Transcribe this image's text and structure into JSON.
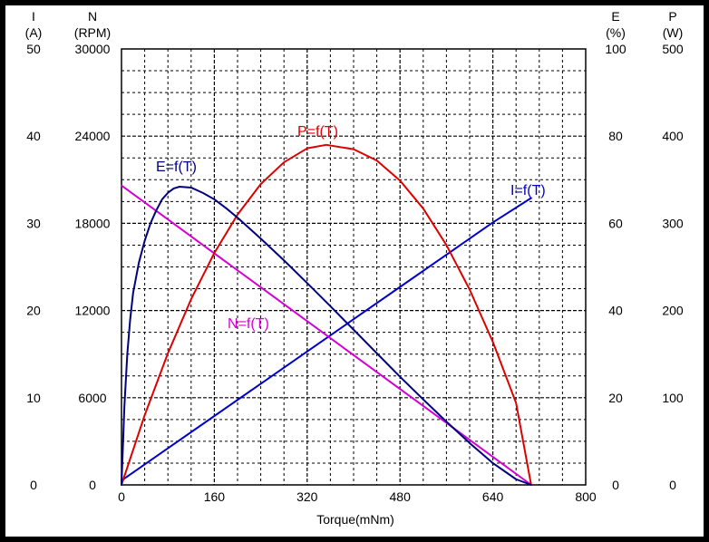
{
  "chart_data": {
    "type": "line",
    "grid": true,
    "xlabel": "Torque(mNm)",
    "xlim": [
      0,
      800
    ],
    "x_ticks": [
      "0",
      "160",
      "320",
      "480",
      "640",
      "800"
    ],
    "axes": {
      "left_outer": {
        "name": "I",
        "unit": "(A)",
        "ticks": [
          "0",
          "10",
          "20",
          "30",
          "40",
          "50"
        ],
        "range": [
          0,
          50
        ]
      },
      "left_inner": {
        "name": "N",
        "unit": "(RPM)",
        "ticks": [
          "0",
          "6000",
          "12000",
          "18000",
          "24000",
          "30000"
        ],
        "range": [
          0,
          30000
        ]
      },
      "right_inner": {
        "name": "E",
        "unit": "(%)",
        "ticks": [
          "0",
          "20",
          "40",
          "60",
          "80",
          "100"
        ],
        "range": [
          0,
          100
        ]
      },
      "right_outer": {
        "name": "P",
        "unit": "(W)",
        "ticks": [
          "0",
          "100",
          "200",
          "300",
          "400",
          "500"
        ],
        "range": [
          0,
          500
        ]
      }
    },
    "series": [
      {
        "name": "I=f(T)",
        "axis": "left_outer",
        "color": "#0000cc",
        "x": [
          0,
          80,
          160,
          240,
          320,
          400,
          480,
          560,
          640,
          706
        ],
        "y": [
          0.5,
          4.2,
          7.9,
          11.6,
          15.3,
          19.0,
          22.7,
          26.4,
          30.1,
          32.9
        ]
      },
      {
        "name": "N=f(T)",
        "axis": "left_inner",
        "color": "#d400d4",
        "x": [
          0,
          80,
          160,
          240,
          320,
          400,
          480,
          560,
          640,
          706
        ],
        "y": [
          20600,
          18270,
          15930,
          13600,
          11270,
          8930,
          6600,
          4270,
          1930,
          0
        ]
      },
      {
        "name": "P=f(T)",
        "axis": "right_outer",
        "color": "#dd0000",
        "x": [
          0,
          40,
          80,
          120,
          160,
          200,
          240,
          280,
          320,
          353,
          400,
          440,
          480,
          520,
          560,
          600,
          640,
          680,
          706
        ],
        "y": [
          0,
          80,
          151,
          213,
          266,
          310,
          345,
          370,
          386,
          390,
          385,
          372,
          349,
          317,
          275,
          224,
          164,
          94,
          0
        ]
      },
      {
        "name": "E=f(T)",
        "axis": "right_inner",
        "color": "#000080",
        "x": [
          0,
          5,
          10,
          15,
          20,
          30,
          40,
          50,
          60,
          70,
          80,
          90,
          100,
          120,
          140,
          160,
          180,
          200,
          240,
          280,
          320,
          360,
          400,
          440,
          480,
          520,
          560,
          600,
          640,
          680,
          706
        ],
        "y": [
          0,
          18,
          30,
          38,
          44,
          51,
          56,
          60,
          63,
          65.5,
          67,
          68,
          68.4,
          68.2,
          67,
          65.5,
          63.5,
          61.3,
          56.5,
          51.5,
          46.3,
          41,
          35.6,
          30.2,
          24.8,
          19.6,
          14.5,
          9.6,
          5,
          1.3,
          0
        ]
      }
    ]
  }
}
